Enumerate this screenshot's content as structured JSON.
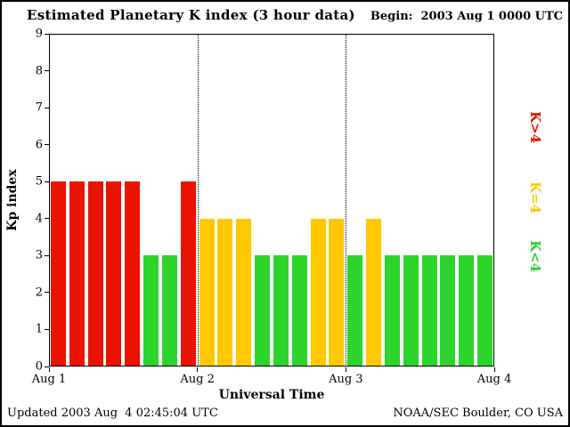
{
  "header": {
    "begin_label": "Begin:  2003 Aug 1 0000 UTC"
  },
  "footer": {
    "updated": "Updated 2003 Aug  4 02:45:04 UTC",
    "source": "NOAA/SEC Boulder, CO USA"
  },
  "chart_data": {
    "type": "bar",
    "title": "Estimated Planetary K index (3 hour data)",
    "xlabel": "Universal Time",
    "ylabel": "Kp index",
    "ylim": [
      0,
      9
    ],
    "yticks": [
      0,
      1,
      2,
      3,
      4,
      5,
      6,
      7,
      8,
      9
    ],
    "xticks": [
      "Aug 1",
      "Aug 2",
      "Aug 3",
      "Aug 4"
    ],
    "interval_hours": 3,
    "values": [
      5,
      5,
      5,
      5,
      5,
      3,
      3,
      5,
      4,
      4,
      4,
      3,
      3,
      3,
      4,
      4,
      3,
      4,
      3,
      3,
      3,
      3,
      3,
      3
    ],
    "series_by_day": [
      {
        "day": "Aug 1",
        "values": [
          5,
          5,
          5,
          5,
          5,
          3,
          3,
          5
        ]
      },
      {
        "day": "Aug 2",
        "values": [
          4,
          4,
          4,
          3,
          3,
          3,
          4,
          4
        ]
      },
      {
        "day": "Aug 3",
        "values": [
          3,
          4,
          3,
          3,
          3,
          3,
          3,
          3
        ]
      }
    ],
    "day_separator_indices": [
      8,
      16
    ],
    "colors": {
      "k_gt_4": "#ea1200",
      "k_eq_4": "#ffc800",
      "k_lt_4": "#2cd42c"
    },
    "color_rule": "red if K>4, yellow if K=4, green if K<4",
    "legend": [
      {
        "name": "k-gt-4",
        "label": "K>4",
        "color": "#ea1200"
      },
      {
        "name": "k-eq-4",
        "label": "K=4",
        "color": "#ffc800"
      },
      {
        "name": "k-lt-4",
        "label": "K<4",
        "color": "#2cd42c"
      }
    ],
    "grid": false,
    "legend_position": "right-rotated"
  }
}
